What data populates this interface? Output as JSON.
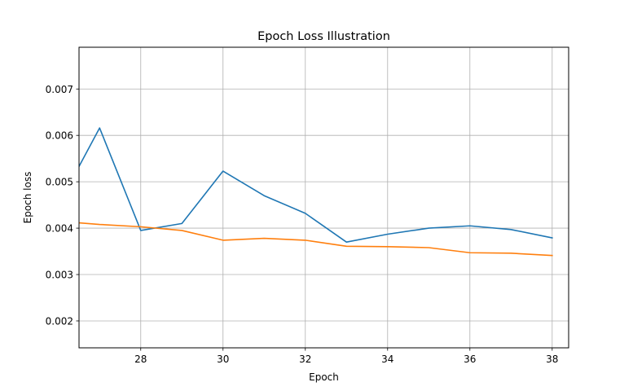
{
  "chart_data": {
    "type": "line",
    "title": "Epoch Loss Illustration",
    "xlabel": "Epoch",
    "ylabel": "Epoch loss",
    "xlim": [
      26.5,
      38.4
    ],
    "ylim": [
      0.00142,
      0.0079
    ],
    "x_ticks": [
      28,
      30,
      32,
      34,
      36,
      38
    ],
    "y_ticks": [
      0.002,
      0.003,
      0.004,
      0.005,
      0.006,
      0.007
    ],
    "y_tick_labels": [
      "0.002",
      "0.003",
      "0.004",
      "0.005",
      "0.006",
      "0.007"
    ],
    "grid": true,
    "series": [
      {
        "color": "#1f77b4",
        "x": [
          26,
          27,
          28,
          29,
          30,
          31,
          32,
          33,
          34,
          35,
          36,
          37,
          38
        ],
        "y": [
          0.0045,
          0.00616,
          0.00395,
          0.0041,
          0.00523,
          0.0047,
          0.00432,
          0.0037,
          0.00387,
          0.004,
          0.00405,
          0.00397,
          0.00379
        ]
      },
      {
        "color": "#ff7f0e",
        "x": [
          26,
          27,
          28,
          29,
          30,
          31,
          32,
          33,
          34,
          35,
          36,
          37,
          38
        ],
        "y": [
          0.00415,
          0.00408,
          0.00403,
          0.00395,
          0.00374,
          0.00378,
          0.00374,
          0.00361,
          0.0036,
          0.00358,
          0.00347,
          0.00346,
          0.00341
        ]
      }
    ]
  }
}
